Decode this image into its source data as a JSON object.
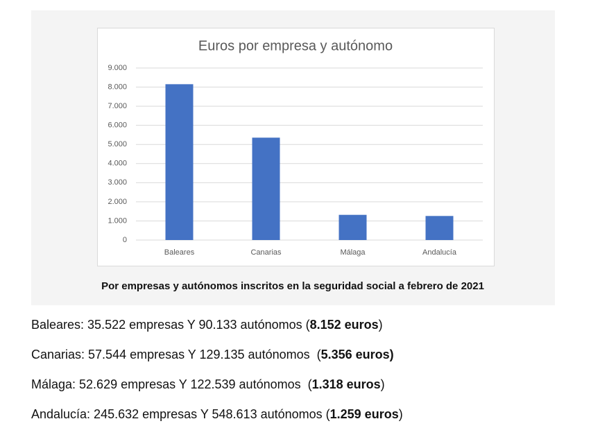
{
  "chart_data": {
    "type": "bar",
    "title": "Euros por empresa y autónomo",
    "categories": [
      "Baleares",
      "Canarias",
      "Málaga",
      "Andalucía"
    ],
    "values": [
      8152,
      5356,
      1318,
      1259
    ],
    "color": "#4472c4",
    "ylim": [
      0,
      9000
    ],
    "yticks": [
      0,
      {
        "value": 1000,
        "label": "1.000"
      },
      {
        "value": 2000,
        "label": "2.000"
      },
      {
        "value": 3000,
        "label": "3.000"
      },
      {
        "value": 4000,
        "label": "4.000"
      },
      {
        "value": 5000,
        "label": "5.000"
      },
      {
        "value": 6000,
        "label": "6.000"
      },
      {
        "value": 7000,
        "label": "7.000"
      },
      {
        "value": 8000,
        "label": "8.000"
      },
      {
        "value": 9000,
        "label": "9.000"
      }
    ],
    "grid": true
  },
  "caption": "Por empresas y autónomos inscritos en la seguridad social a febrero de 2021",
  "lines": [
    [
      "Baleares: 35.522 empresas Y 90.133 autónomos (",
      "8.152 euros",
      ")"
    ],
    [
      "Canarias: 57.544 empresas Y 129.135 autónomos  (",
      "5.356 euros)"
    ],
    [
      "Málaga: 52.629 empresas Y 122.539 autónomos  (",
      "1.318 euros",
      ")"
    ],
    [
      "Andalucía: 245.632 empresas Y 548.613 autónomos (",
      "1.259 euros",
      ")"
    ]
  ]
}
